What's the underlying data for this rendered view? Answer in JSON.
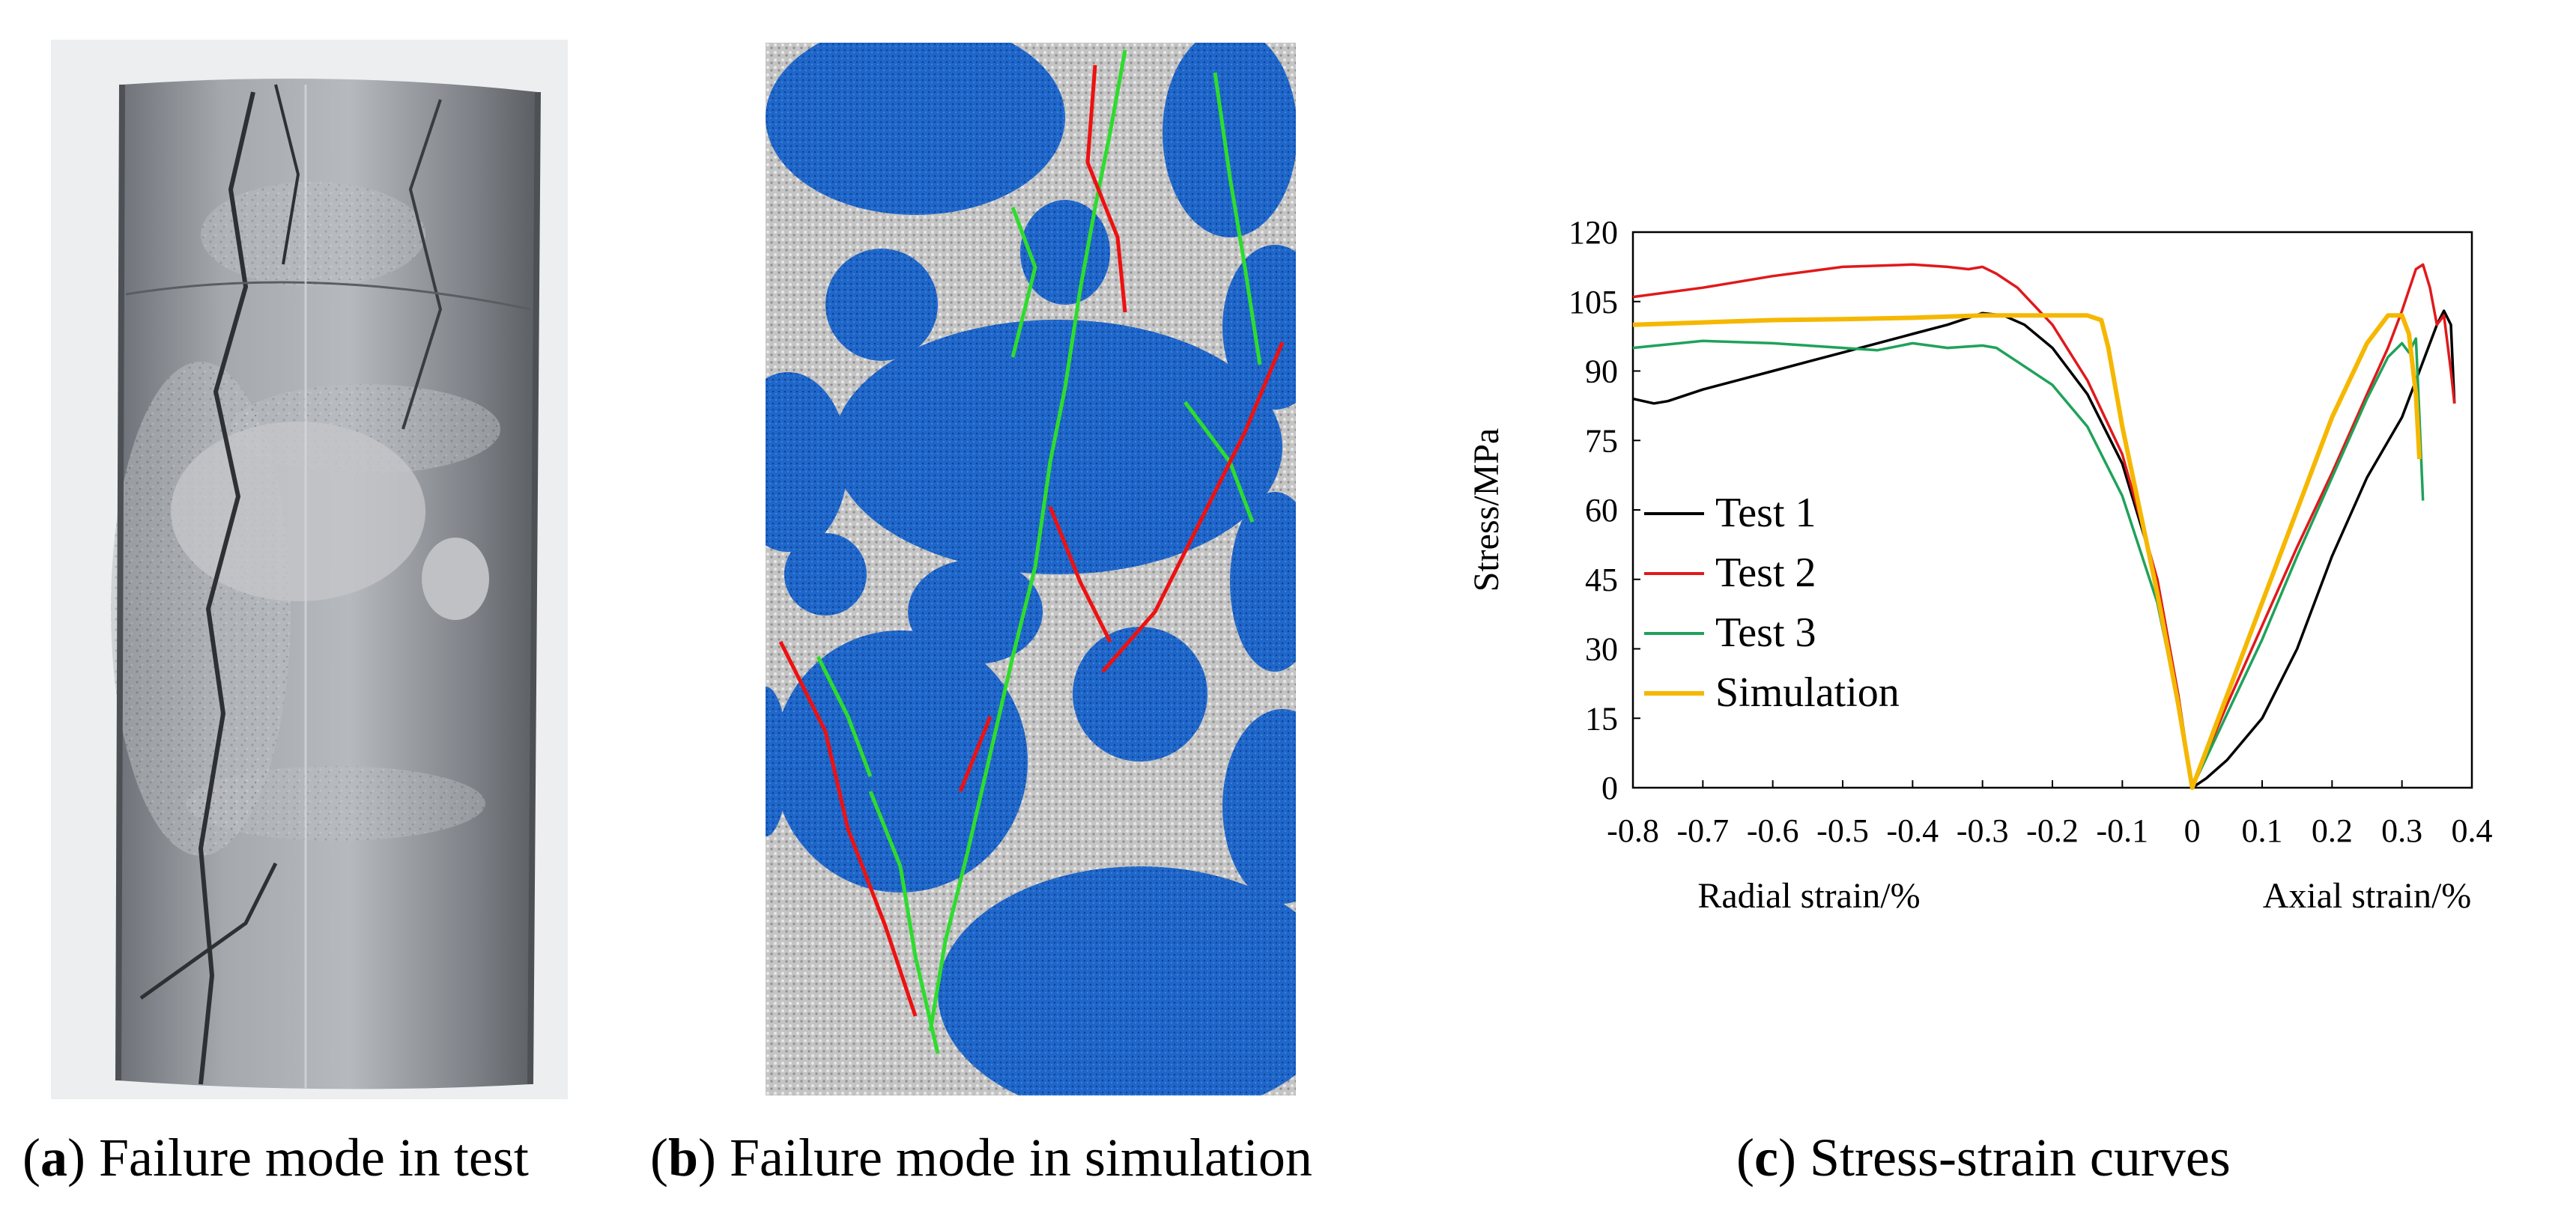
{
  "captions": {
    "a": {
      "letter": "a",
      "text": "Failure mode in test"
    },
    "b": {
      "letter": "b",
      "text": "Failure mode in simulation"
    },
    "c": {
      "letter": "c",
      "text": "Stress-strain curves"
    }
  },
  "colors": {
    "test1": "#000000",
    "test2": "#e0191b",
    "test3": "#1fa25a",
    "simulation": "#f5b700",
    "sim_particles": "#1e63c8",
    "sim_matrix": "#c9c9c9",
    "sim_crack_tension": "#2edc2e",
    "sim_crack_shear": "#ee1111",
    "specimen": "#8f9399"
  },
  "chart_data": {
    "type": "line",
    "ylabel": "Stress/MPa",
    "xlabel_left": "Radial strain/%",
    "xlabel_right": "Axial strain/%",
    "xlim": [
      -0.8,
      0.4
    ],
    "ylim": [
      0,
      120
    ],
    "xticks": [
      "-0.8",
      "-0.7",
      "-0.6",
      "-0.5",
      "-0.4",
      "-0.3",
      "-0.2",
      "-0.1",
      "0",
      "0.1",
      "0.2",
      "0.3",
      "0.4"
    ],
    "yticks": [
      "0",
      "15",
      "30",
      "45",
      "60",
      "75",
      "90",
      "105",
      "120"
    ],
    "legend_position": "lower-left",
    "series": [
      {
        "name": "Test 1",
        "key": "test1",
        "x": [
          -0.8,
          -0.77,
          -0.75,
          -0.7,
          -0.6,
          -0.5,
          -0.4,
          -0.35,
          -0.3,
          -0.27,
          -0.24,
          -0.2,
          -0.15,
          -0.1,
          -0.05,
          -0.02,
          0,
          0.02,
          0.05,
          0.1,
          0.15,
          0.2,
          0.25,
          0.3,
          0.33,
          0.35,
          0.36,
          0.37,
          0.375
        ],
        "y": [
          84,
          83,
          83.5,
          86,
          90,
          94,
          98,
          100,
          102.5,
          102,
          100,
          95,
          85,
          70,
          45,
          20,
          0,
          2,
          6,
          15,
          30,
          50,
          67,
          80,
          92,
          100,
          103,
          100,
          83
        ]
      },
      {
        "name": "Test 2",
        "key": "test2",
        "x": [
          -0.8,
          -0.7,
          -0.6,
          -0.5,
          -0.4,
          -0.35,
          -0.32,
          -0.3,
          -0.28,
          -0.25,
          -0.2,
          -0.15,
          -0.1,
          -0.05,
          -0.02,
          0,
          0.05,
          0.1,
          0.15,
          0.2,
          0.25,
          0.28,
          0.3,
          0.32,
          0.33,
          0.34,
          0.35,
          0.36,
          0.37,
          0.375
        ],
        "y": [
          106,
          108,
          110.5,
          112.5,
          113,
          112.5,
          112,
          112.5,
          111,
          108,
          100,
          88,
          72,
          45,
          20,
          0,
          18,
          35,
          52,
          68,
          85,
          95,
          103,
          112,
          113,
          108,
          100,
          102,
          90,
          83
        ]
      },
      {
        "name": "Test 3",
        "key": "test3",
        "x": [
          -0.8,
          -0.7,
          -0.6,
          -0.5,
          -0.45,
          -0.4,
          -0.35,
          -0.3,
          -0.28,
          -0.25,
          -0.2,
          -0.15,
          -0.1,
          -0.05,
          -0.02,
          0,
          0.05,
          0.1,
          0.15,
          0.2,
          0.25,
          0.28,
          0.3,
          0.31,
          0.32,
          0.325,
          0.33
        ],
        "y": [
          95,
          96.5,
          96,
          95,
          94.5,
          96,
          95,
          95.5,
          95,
          92,
          87,
          78,
          63,
          40,
          18,
          0,
          16,
          32,
          50,
          67,
          84,
          93,
          96,
          94,
          97,
          80,
          62
        ]
      },
      {
        "name": "Simulation",
        "key": "simulation",
        "x": [
          -0.8,
          -0.7,
          -0.6,
          -0.5,
          -0.4,
          -0.3,
          -0.2,
          -0.15,
          -0.13,
          -0.12,
          -0.1,
          -0.05,
          -0.02,
          0,
          0.05,
          0.1,
          0.15,
          0.2,
          0.25,
          0.28,
          0.3,
          0.31,
          0.32,
          0.325
        ],
        "y": [
          100,
          100.5,
          101,
          101.2,
          101.5,
          102,
          102,
          102,
          101,
          95,
          78,
          42,
          18,
          0,
          20,
          40,
          60,
          80,
          96,
          102,
          102,
          98,
          85,
          71
        ]
      }
    ]
  }
}
